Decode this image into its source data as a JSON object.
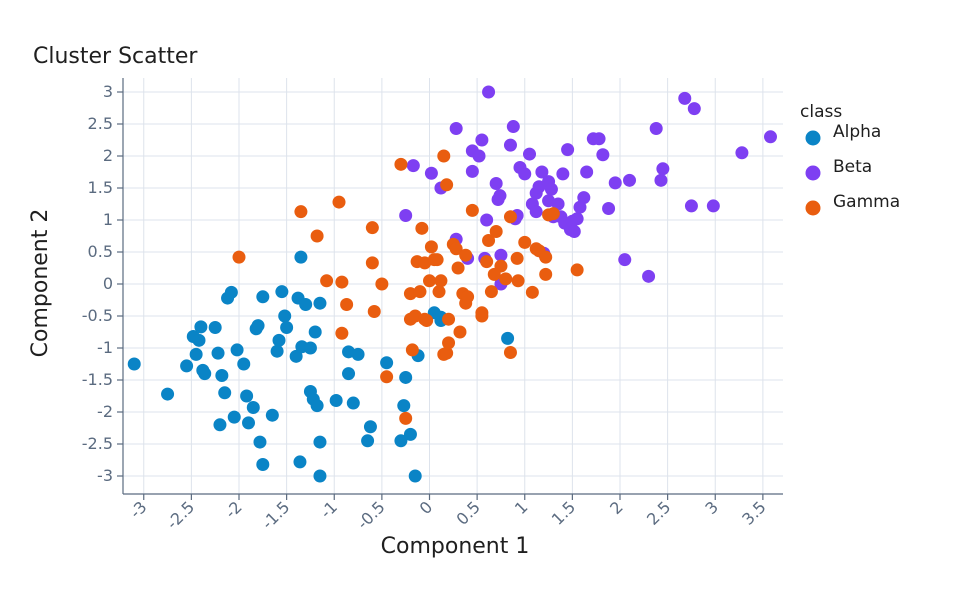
{
  "chart_data": {
    "type": "scatter",
    "title": "Cluster Scatter",
    "xlabel": "Component 1",
    "ylabel": "Component 2",
    "xlim": [
      -3.2,
      3.7
    ],
    "ylim": [
      -3.15,
      3.15
    ],
    "xticks": [
      -3,
      -2.5,
      -2,
      -1.5,
      -1,
      -0.5,
      0,
      0.5,
      1,
      1.5,
      2,
      2.5,
      3,
      3.5
    ],
    "yticks": [
      -3,
      -2.5,
      -2,
      -1.5,
      -1,
      -0.5,
      0,
      0.5,
      1,
      1.5,
      2,
      2.5,
      3
    ],
    "grid": true,
    "legend": {
      "title": "class",
      "position": "right"
    },
    "series": [
      {
        "name": "Alpha",
        "color": "#0a84c6",
        "points": [
          [
            -3.1,
            -1.25
          ],
          [
            -2.75,
            -1.72
          ],
          [
            -2.55,
            -1.28
          ],
          [
            -2.48,
            -0.82
          ],
          [
            -2.45,
            -1.1
          ],
          [
            -2.42,
            -0.88
          ],
          [
            -2.4,
            -0.67
          ],
          [
            -2.38,
            -1.35
          ],
          [
            -2.36,
            -1.4
          ],
          [
            -2.25,
            -0.68
          ],
          [
            -2.22,
            -1.08
          ],
          [
            -2.2,
            -2.2
          ],
          [
            -2.18,
            -1.43
          ],
          [
            -2.15,
            -1.7
          ],
          [
            -2.12,
            -0.22
          ],
          [
            -2.08,
            -0.13
          ],
          [
            -2.05,
            -2.08
          ],
          [
            -2.02,
            -1.03
          ],
          [
            -1.95,
            -1.25
          ],
          [
            -1.92,
            -1.75
          ],
          [
            -1.9,
            -2.17
          ],
          [
            -1.85,
            -1.93
          ],
          [
            -1.82,
            -0.7
          ],
          [
            -1.8,
            -0.65
          ],
          [
            -1.78,
            -2.47
          ],
          [
            -1.75,
            -2.82
          ],
          [
            -1.75,
            -0.2
          ],
          [
            -1.65,
            -2.05
          ],
          [
            -1.6,
            -1.05
          ],
          [
            -1.58,
            -0.88
          ],
          [
            -1.55,
            -0.12
          ],
          [
            -1.52,
            -0.5
          ],
          [
            -1.5,
            -0.68
          ],
          [
            -1.4,
            -1.13
          ],
          [
            -1.38,
            -0.22
          ],
          [
            -1.36,
            -2.78
          ],
          [
            -1.35,
            0.42
          ],
          [
            -1.34,
            -0.98
          ],
          [
            -1.3,
            -0.32
          ],
          [
            -1.25,
            -1.68
          ],
          [
            -1.25,
            -1.0
          ],
          [
            -1.2,
            -0.75
          ],
          [
            -1.15,
            -0.3
          ],
          [
            -1.22,
            -1.8
          ],
          [
            -1.18,
            -1.9
          ],
          [
            -1.15,
            -2.47
          ],
          [
            -1.15,
            -3.0
          ],
          [
            -0.98,
            -1.82
          ],
          [
            -0.85,
            -1.06
          ],
          [
            -0.85,
            -1.4
          ],
          [
            -0.8,
            -1.86
          ],
          [
            -0.75,
            -1.1
          ],
          [
            -0.65,
            -2.45
          ],
          [
            -0.62,
            -2.23
          ],
          [
            -0.45,
            -1.23
          ],
          [
            -0.3,
            -2.45
          ],
          [
            -0.27,
            -1.9
          ],
          [
            -0.25,
            -1.46
          ],
          [
            -0.2,
            -2.35
          ],
          [
            -0.15,
            -3.0
          ],
          [
            -0.12,
            -1.12
          ],
          [
            0.05,
            -0.45
          ],
          [
            0.12,
            -0.57
          ],
          [
            0.12,
            -0.52
          ],
          [
            0.82,
            -0.85
          ]
        ]
      },
      {
        "name": "Beta",
        "color": "#7e3ff2",
        "points": [
          [
            -0.25,
            1.07
          ],
          [
            -0.17,
            1.85
          ],
          [
            0.02,
            1.73
          ],
          [
            0.12,
            1.5
          ],
          [
            0.28,
            2.43
          ],
          [
            0.28,
            0.7
          ],
          [
            0.4,
            0.4
          ],
          [
            0.45,
            1.76
          ],
          [
            0.45,
            2.08
          ],
          [
            0.52,
            2.0
          ],
          [
            0.55,
            2.25
          ],
          [
            0.58,
            0.4
          ],
          [
            0.6,
            1.0
          ],
          [
            0.62,
            3.0
          ],
          [
            0.7,
            1.57
          ],
          [
            0.72,
            1.32
          ],
          [
            0.74,
            1.38
          ],
          [
            0.75,
            0.45
          ],
          [
            0.75,
            0.0
          ],
          [
            0.85,
            2.17
          ],
          [
            0.88,
            2.46
          ],
          [
            0.9,
            1.02
          ],
          [
            0.92,
            1.07
          ],
          [
            0.95,
            1.82
          ],
          [
            1.0,
            1.72
          ],
          [
            1.05,
            2.03
          ],
          [
            1.08,
            1.25
          ],
          [
            1.12,
            1.13
          ],
          [
            1.12,
            1.42
          ],
          [
            1.15,
            1.52
          ],
          [
            1.18,
            1.75
          ],
          [
            1.2,
            0.48
          ],
          [
            1.25,
            1.3
          ],
          [
            1.25,
            1.6
          ],
          [
            1.28,
            1.48
          ],
          [
            1.3,
            1.05
          ],
          [
            1.35,
            1.25
          ],
          [
            1.38,
            1.05
          ],
          [
            1.4,
            1.72
          ],
          [
            1.42,
            0.95
          ],
          [
            1.45,
            2.1
          ],
          [
            1.48,
            0.85
          ],
          [
            1.5,
            0.98
          ],
          [
            1.52,
            0.82
          ],
          [
            1.55,
            1.02
          ],
          [
            1.58,
            1.2
          ],
          [
            1.62,
            1.35
          ],
          [
            1.65,
            1.75
          ],
          [
            1.72,
            2.27
          ],
          [
            1.78,
            2.27
          ],
          [
            1.82,
            2.02
          ],
          [
            1.88,
            1.18
          ],
          [
            1.95,
            1.58
          ],
          [
            2.05,
            0.38
          ],
          [
            2.1,
            1.62
          ],
          [
            2.3,
            0.12
          ],
          [
            2.38,
            2.43
          ],
          [
            2.43,
            1.62
          ],
          [
            2.45,
            1.8
          ],
          [
            2.68,
            2.9
          ],
          [
            2.75,
            1.22
          ],
          [
            2.78,
            2.74
          ],
          [
            2.98,
            1.22
          ],
          [
            3.28,
            2.05
          ],
          [
            3.58,
            2.3
          ]
        ]
      },
      {
        "name": "Gamma",
        "color": "#e95d0f",
        "points": [
          [
            -2.0,
            0.42
          ],
          [
            -1.35,
            1.13
          ],
          [
            -1.18,
            0.75
          ],
          [
            -1.08,
            0.05
          ],
          [
            -0.95,
            1.28
          ],
          [
            -0.92,
            0.03
          ],
          [
            -0.92,
            -0.77
          ],
          [
            -0.87,
            -0.32
          ],
          [
            -0.6,
            0.88
          ],
          [
            -0.6,
            0.33
          ],
          [
            -0.58,
            -0.43
          ],
          [
            -0.45,
            -1.45
          ],
          [
            -0.3,
            1.87
          ],
          [
            -0.2,
            -0.15
          ],
          [
            -0.2,
            -0.55
          ],
          [
            -0.18,
            -1.03
          ],
          [
            -0.15,
            -0.5
          ],
          [
            -0.13,
            0.35
          ],
          [
            -0.1,
            -0.12
          ],
          [
            -0.08,
            0.87
          ],
          [
            -0.05,
            -0.55
          ],
          [
            -0.05,
            0.33
          ],
          [
            -0.03,
            -0.57
          ],
          [
            0.0,
            0.05
          ],
          [
            0.02,
            0.58
          ],
          [
            0.05,
            0.38
          ],
          [
            0.08,
            0.38
          ],
          [
            0.1,
            -0.12
          ],
          [
            0.12,
            0.05
          ],
          [
            0.15,
            -1.1
          ],
          [
            0.18,
            -1.08
          ],
          [
            0.2,
            -0.55
          ],
          [
            0.2,
            -0.92
          ],
          [
            0.25,
            0.62
          ],
          [
            0.28,
            0.55
          ],
          [
            0.3,
            0.25
          ],
          [
            0.32,
            -0.75
          ],
          [
            0.35,
            -0.15
          ],
          [
            0.38,
            -0.3
          ],
          [
            0.38,
            0.45
          ],
          [
            0.4,
            -0.2
          ],
          [
            0.45,
            1.15
          ],
          [
            0.55,
            -0.45
          ],
          [
            0.6,
            0.35
          ],
          [
            0.62,
            0.68
          ],
          [
            0.65,
            -0.12
          ],
          [
            0.68,
            0.15
          ],
          [
            0.7,
            0.82
          ],
          [
            0.75,
            0.28
          ],
          [
            0.8,
            0.08
          ],
          [
            0.85,
            1.05
          ],
          [
            0.85,
            -1.07
          ],
          [
            0.92,
            0.4
          ],
          [
            0.93,
            0.05
          ],
          [
            1.0,
            0.65
          ],
          [
            1.08,
            -0.13
          ],
          [
            1.12,
            0.55
          ],
          [
            1.15,
            0.52
          ],
          [
            1.22,
            0.42
          ],
          [
            1.22,
            0.15
          ],
          [
            1.25,
            1.08
          ],
          [
            1.3,
            1.1
          ],
          [
            1.55,
            0.22
          ],
          [
            -0.25,
            -2.1
          ],
          [
            0.55,
            -0.5
          ],
          [
            0.18,
            1.55
          ],
          [
            0.15,
            2.0
          ],
          [
            -0.5,
            0.0
          ]
        ]
      }
    ]
  }
}
